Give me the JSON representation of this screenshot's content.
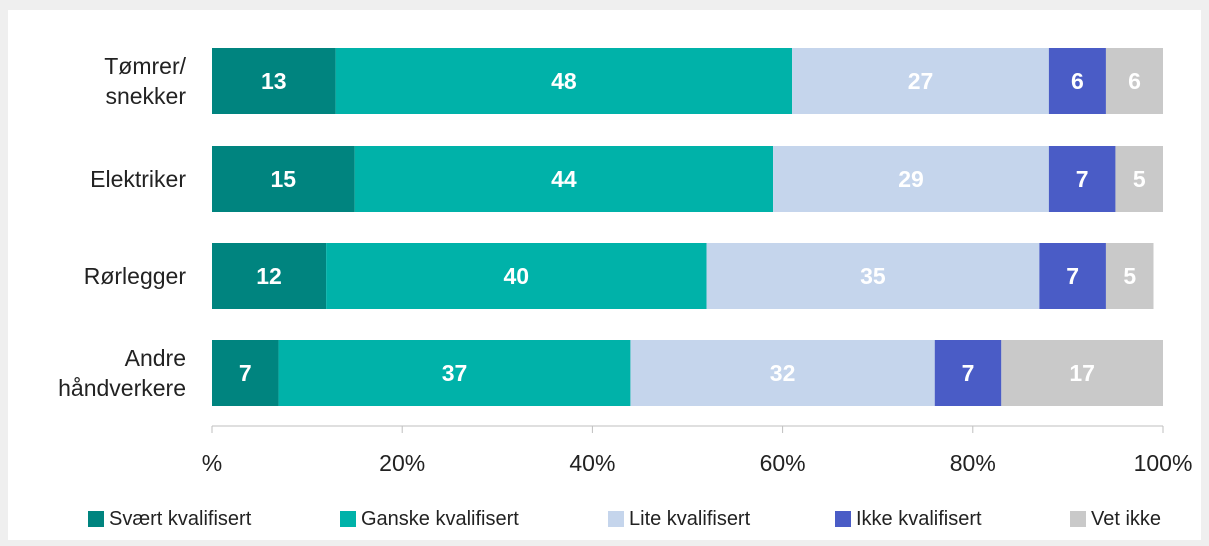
{
  "chart_data": {
    "type": "stacked-barh",
    "categories": [
      [
        "Tømrer/",
        "snekker"
      ],
      [
        "Elektriker"
      ],
      [
        "Rørlegger"
      ],
      [
        "Andre",
        "håndverkere"
      ]
    ],
    "series": [
      {
        "name": "Svært kvalifisert",
        "color": "#00847f",
        "values": [
          13,
          15,
          12,
          7
        ]
      },
      {
        "name": "Ganske kvalifisert",
        "color": "#00b2a9",
        "values": [
          48,
          44,
          40,
          37
        ]
      },
      {
        "name": "Lite kvalifisert",
        "color": "#c5d5ec",
        "values": [
          27,
          29,
          35,
          32
        ]
      },
      {
        "name": "Ikke kvalifisert",
        "color": "#4a5cc6",
        "values": [
          6,
          7,
          7,
          7
        ]
      },
      {
        "name": "Vet ikke",
        "color": "#c9c9c9",
        "values": [
          6,
          5,
          5,
          17
        ]
      }
    ],
    "xlim": [
      0,
      100
    ],
    "xticks": [
      {
        "value": 0,
        "label": "%"
      },
      {
        "value": 20,
        "label": "20%"
      },
      {
        "value": 40,
        "label": "40%"
      },
      {
        "value": 60,
        "label": "60%"
      },
      {
        "value": 80,
        "label": "80%"
      },
      {
        "value": 100,
        "label": "100%"
      }
    ]
  }
}
